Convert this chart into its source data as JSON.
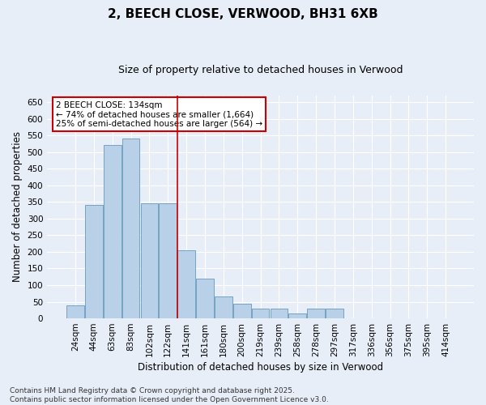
{
  "title_line1": "2, BEECH CLOSE, VERWOOD, BH31 6XB",
  "title_line2": "Size of property relative to detached houses in Verwood",
  "xlabel": "Distribution of detached houses by size in Verwood",
  "ylabel": "Number of detached properties",
  "categories": [
    "24sqm",
    "44sqm",
    "63sqm",
    "83sqm",
    "102sqm",
    "122sqm",
    "141sqm",
    "161sqm",
    "180sqm",
    "200sqm",
    "219sqm",
    "239sqm",
    "258sqm",
    "278sqm",
    "297sqm",
    "317sqm",
    "336sqm",
    "356sqm",
    "375sqm",
    "395sqm",
    "414sqm"
  ],
  "values": [
    40,
    340,
    520,
    540,
    345,
    345,
    205,
    120,
    65,
    45,
    30,
    30,
    15,
    30,
    30,
    0,
    0,
    0,
    0,
    0,
    0
  ],
  "bar_color": "#b8d0e8",
  "bar_edge_color": "#6699bb",
  "vline_x_index": 6.0,
  "vline_color": "#cc0000",
  "annotation_text": "2 BEECH CLOSE: 134sqm\n← 74% of detached houses are smaller (1,664)\n25% of semi-detached houses are larger (564) →",
  "annotation_box_color": "#ffffff",
  "annotation_box_edge": "#cc0000",
  "ylim": [
    0,
    670
  ],
  "yticks": [
    0,
    50,
    100,
    150,
    200,
    250,
    300,
    350,
    400,
    450,
    500,
    550,
    600,
    650
  ],
  "bg_color": "#e8eef8",
  "grid_color": "#ffffff",
  "footnote": "Contains HM Land Registry data © Crown copyright and database right 2025.\nContains public sector information licensed under the Open Government Licence v3.0.",
  "title_fontsize": 11,
  "subtitle_fontsize": 9,
  "axis_label_fontsize": 8.5,
  "tick_fontsize": 7.5,
  "annotation_fontsize": 7.5,
  "footnote_fontsize": 6.5
}
